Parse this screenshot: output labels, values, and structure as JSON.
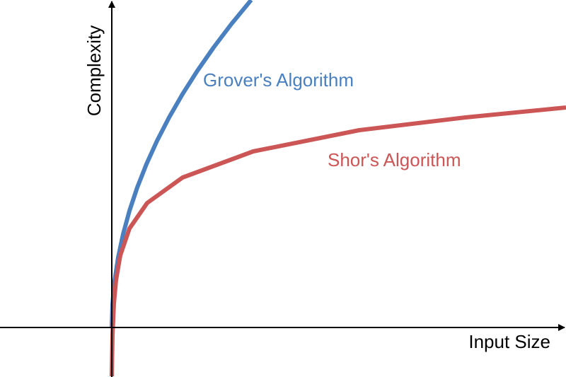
{
  "chart_data": {
    "type": "line",
    "x_label": "Input Size",
    "y_label": "Complexity",
    "xlim": [
      -158,
      642
    ],
    "ylim": [
      -70,
      463
    ],
    "series": [
      {
        "name": "Grover's Algorithm",
        "color": "#4a80c0",
        "x": [
          0,
          1,
          4,
          9,
          16,
          25,
          36,
          49,
          64,
          81,
          100,
          121,
          144,
          169,
          197
        ],
        "values": [
          0,
          33,
          66,
          99,
          132,
          165,
          198,
          231,
          264,
          297,
          330,
          363,
          396,
          429,
          463
        ]
      },
      {
        "name": "Shor's Algorithm",
        "color": "#cc5555",
        "x": [
          0,
          1,
          3,
          6,
          12,
          25,
          50,
          100,
          200,
          350,
          500,
          642
        ],
        "values": [
          -69,
          -10.5,
          34,
          67,
          102,
          140,
          176,
          212,
          249,
          279,
          297,
          311
        ]
      }
    ]
  }
}
